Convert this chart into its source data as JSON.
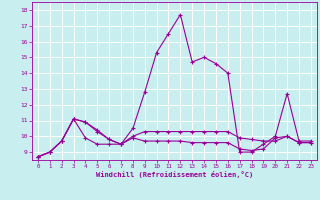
{
  "xlabel": "Windchill (Refroidissement éolien,°C)",
  "xlim": [
    -0.5,
    23.5
  ],
  "ylim": [
    8.5,
    18.5
  ],
  "yticks": [
    9,
    10,
    11,
    12,
    13,
    14,
    15,
    16,
    17,
    18
  ],
  "xticks": [
    0,
    1,
    2,
    3,
    4,
    5,
    6,
    7,
    8,
    9,
    10,
    11,
    12,
    13,
    14,
    15,
    16,
    17,
    18,
    19,
    20,
    21,
    22,
    23
  ],
  "background_color": "#c8eef0",
  "grid_color": "#b0d8dc",
  "line_color": "#990099",
  "lines": [
    {
      "x": [
        0,
        1,
        2,
        3,
        4,
        5,
        6,
        7,
        8,
        9,
        10,
        11,
        12,
        13,
        14,
        15,
        16,
        17,
        18,
        19,
        20,
        21,
        22,
        23
      ],
      "y": [
        8.7,
        9.0,
        9.7,
        11.1,
        9.9,
        9.5,
        9.5,
        9.5,
        10.5,
        12.8,
        15.3,
        16.5,
        17.7,
        14.7,
        15.0,
        14.6,
        14.0,
        9.0,
        9.0,
        9.5,
        10.0,
        12.7,
        9.7,
        9.7
      ]
    },
    {
      "x": [
        0,
        1,
        2,
        3,
        4,
        5,
        6,
        7,
        8,
        9,
        10,
        11,
        12,
        13,
        14,
        15,
        16,
        17,
        18,
        19,
        20,
        21,
        22,
        23
      ],
      "y": [
        8.7,
        9.0,
        9.7,
        11.1,
        10.9,
        10.4,
        9.8,
        9.5,
        10.0,
        10.3,
        10.3,
        10.3,
        10.3,
        10.3,
        10.3,
        10.3,
        10.3,
        9.9,
        9.8,
        9.7,
        9.7,
        10.0,
        9.6,
        9.6
      ]
    },
    {
      "x": [
        0,
        1,
        2,
        3,
        4,
        5,
        6,
        7,
        8,
        9,
        10,
        11,
        12,
        13,
        14,
        15,
        16,
        17,
        18,
        19,
        20,
        21,
        22,
        23
      ],
      "y": [
        8.7,
        9.0,
        9.7,
        11.1,
        10.9,
        10.3,
        9.8,
        9.5,
        9.9,
        9.7,
        9.7,
        9.7,
        9.7,
        9.6,
        9.6,
        9.6,
        9.6,
        9.2,
        9.1,
        9.2,
        9.9,
        10.0,
        9.6,
        9.6
      ]
    }
  ]
}
